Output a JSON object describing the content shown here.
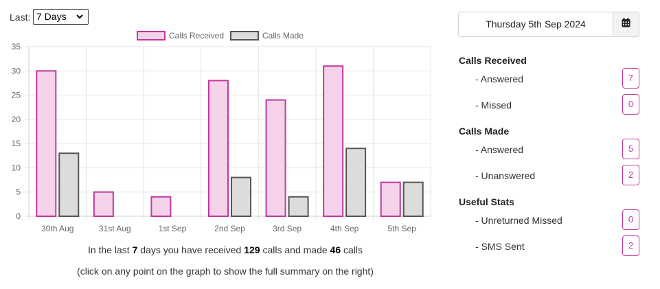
{
  "period": {
    "label": "Last:",
    "selected": "7 Days"
  },
  "date_picker": {
    "value": "Thursday 5th Sep 2024"
  },
  "chart_data": {
    "type": "bar",
    "categories": [
      "30th Aug",
      "31st Aug",
      "1st Sep",
      "2nd Sep",
      "3rd Sep",
      "4th Sep",
      "5th Sep"
    ],
    "series": [
      {
        "name": "Calls Received",
        "values": [
          30,
          5,
          4,
          28,
          24,
          31,
          7
        ],
        "fill": "#f4d2ea",
        "stroke": "#c1399c"
      },
      {
        "name": "Calls Made",
        "values": [
          13,
          0,
          0,
          8,
          4,
          14,
          7
        ],
        "fill": "#dcdcdc",
        "stroke": "#555555"
      }
    ],
    "ylim": [
      0,
      35
    ],
    "yticks": [
      0,
      5,
      10,
      15,
      20,
      25,
      30,
      35
    ],
    "legend": "top-center",
    "grid": true
  },
  "summary": {
    "prefix": "In the last",
    "days": "7",
    "middle": "days you have received",
    "received": "129",
    "middle2": "calls and made",
    "made": "46",
    "suffix": "calls",
    "hint": "(click on any point on the graph to show the full summary on the right)"
  },
  "sidebar": {
    "groups": [
      {
        "title": "Calls Received",
        "rows": [
          {
            "label": "- Answered",
            "value": "7"
          },
          {
            "label": "- Missed",
            "value": "0"
          }
        ]
      },
      {
        "title": "Calls Made",
        "rows": [
          {
            "label": "- Answered",
            "value": "5"
          },
          {
            "label": "- Unanswered",
            "value": "2"
          }
        ]
      },
      {
        "title": "Useful Stats",
        "rows": [
          {
            "label": "- Unreturned Missed",
            "value": "0"
          },
          {
            "label": "- SMS Sent",
            "value": "2"
          }
        ]
      }
    ]
  },
  "colors": {
    "accent": "#c1399c"
  },
  "icons": {
    "date_button": "calendar-icon"
  }
}
